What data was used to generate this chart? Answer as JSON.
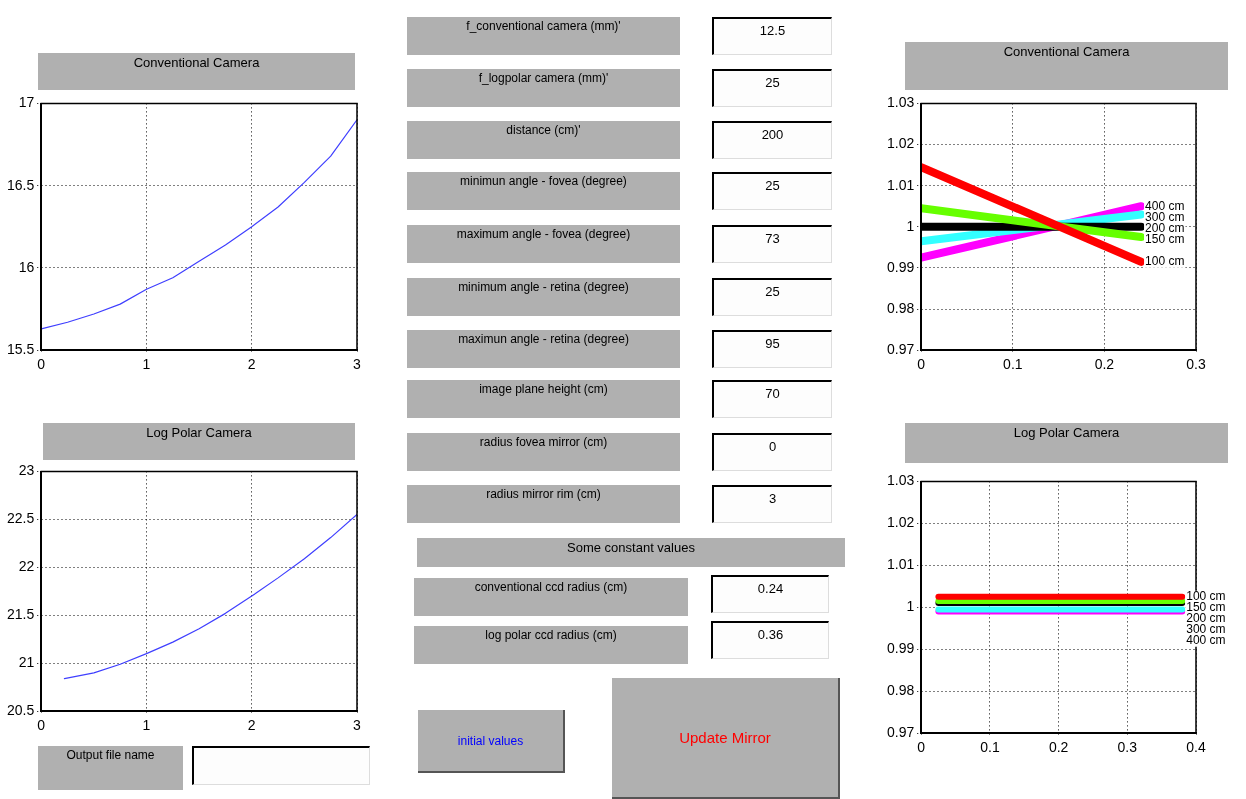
{
  "chart_data": [
    {
      "type": "line",
      "title": "Conventional Camera",
      "xlim": [
        0,
        3
      ],
      "xticks": [
        0,
        1,
        2,
        3
      ],
      "ylim": [
        15.5,
        17
      ],
      "yticks": [
        15.5,
        16,
        16.5,
        17
      ],
      "grid": true,
      "marker": "none",
      "line_style": "solid",
      "x": [
        0,
        0.25,
        0.5,
        0.75,
        1,
        1.25,
        1.5,
        1.75,
        2,
        2.25,
        2.5,
        2.75,
        3
      ],
      "series": [
        {
          "color": "#3f3fff",
          "values": [
            15.63,
            15.67,
            15.72,
            15.78,
            15.87,
            15.94,
            16.04,
            16.14,
            16.25,
            16.37,
            16.52,
            16.68,
            16.9
          ]
        }
      ]
    },
    {
      "type": "other",
      "annotations": [
        "f_conventional camera (mm)'",
        "12.5",
        "f_logpolar camera  (mm)'",
        "25",
        "distance (cm)'",
        "200",
        "minimun angle - fovea  (degree)",
        "25",
        "maximum angle - fovea (degree)",
        "73",
        "minimum angle - retina  (degree)",
        "25",
        "maximun angle - retina (degree)",
        "95",
        "image plane height (cm)",
        "70",
        "radius fovea mirror (cm)",
        "0",
        "radius mirror rim (cm)",
        "3",
        "Some constant values",
        "conventional ccd radius (cm)",
        "0.24",
        "log polar ccd radius (cm)",
        "0.36",
        "initial values",
        "Update Mirror",
        "Output file name"
      ]
    },
    {
      "type": "line",
      "title": "Conventional Camera",
      "xlim": [
        0,
        0.3
      ],
      "xticks": [
        0,
        0.1,
        0.2,
        0.3
      ],
      "ylim": [
        0.97,
        1.03
      ],
      "yticks": [
        0.97,
        0.98,
        0.99,
        1,
        1.01,
        1.02,
        1.03
      ],
      "grid": true,
      "marker": "none",
      "line_style": "solid",
      "x": [
        0,
        0.24
      ],
      "series": [
        {
          "name": "100 cm",
          "color": "#ff0000",
          "values": [
            1.0145,
            0.9915
          ]
        },
        {
          "name": "150 cm",
          "color": "#66ff00",
          "values": [
            1.0045,
            0.9975
          ]
        },
        {
          "name": "200 cm",
          "color": "#000000",
          "values": [
            1,
            1
          ]
        },
        {
          "name": "300 cm",
          "color": "#33ffff",
          "values": [
            0.9965,
            1.003
          ]
        },
        {
          "name": "400 cm",
          "color": "#ff00ff",
          "values": [
            0.9925,
            1.005
          ]
        }
      ]
    },
    {
      "type": "line",
      "title": "Log Polar Camera",
      "xlim": [
        0,
        3
      ],
      "xticks": [
        0,
        1,
        2,
        3
      ],
      "ylim": [
        20.5,
        23
      ],
      "yticks": [
        20.5,
        21,
        21.5,
        22,
        22.5,
        23
      ],
      "grid": true,
      "marker": "none",
      "line_style": "solid",
      "x": [
        0.22,
        0.5,
        0.75,
        1,
        1.25,
        1.5,
        1.75,
        2,
        2.25,
        2.5,
        2.75,
        3
      ],
      "series": [
        {
          "color": "#3f3fff",
          "values": [
            20.84,
            20.9,
            20.99,
            21.1,
            21.22,
            21.36,
            21.52,
            21.7,
            21.89,
            22.09,
            22.31,
            22.55
          ]
        }
      ]
    },
    {
      "type": "line",
      "title": "Log Polar Camera",
      "xlim": [
        0,
        0.4
      ],
      "xticks": [
        0,
        0.1,
        0.2,
        0.3,
        0.4
      ],
      "ylim": [
        0.97,
        1.03
      ],
      "yticks": [
        0.97,
        0.98,
        0.99,
        1,
        1.01,
        1.02,
        1.03
      ],
      "grid": true,
      "marker": "none",
      "line_style": "solid",
      "x": [
        0.025,
        0.38
      ],
      "series": [
        {
          "name": "100 cm",
          "color": "#ff0000",
          "values": [
            1.0025,
            1.0025
          ]
        },
        {
          "name": "150 cm",
          "color": "#66ff00",
          "values": [
            1.0015,
            1.0015
          ]
        },
        {
          "name": "200 cm",
          "color": "#000000",
          "values": [
            1.001,
            1.001
          ]
        },
        {
          "name": "300 cm",
          "color": "#33ffff",
          "values": [
            0.9995,
            0.9995
          ]
        },
        {
          "name": "400 cm",
          "color": "#ff00ff",
          "values": [
            0.999,
            0.999
          ]
        }
      ]
    }
  ]
}
